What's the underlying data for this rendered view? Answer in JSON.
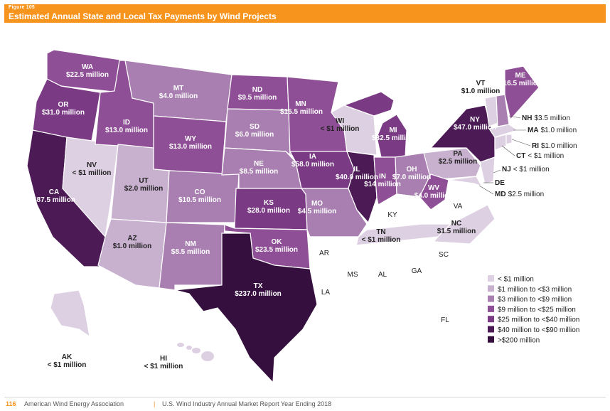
{
  "header": {
    "figure": "Figure 105",
    "title": "Estimated Annual State and Local Tax Payments by Wind Projects"
  },
  "footer": {
    "page": "116",
    "org": "American Wind Energy Association",
    "separator": "|",
    "report": "U.S. Wind Industry Annual Market Report Year Ending 2018"
  },
  "legend": [
    {
      "label": "< $1 million",
      "color": "#ddd0e2"
    },
    {
      "label": "$1 million to <$3 million",
      "color": "#c8b0cf"
    },
    {
      "label": "$3 million to <$9 million",
      "color": "#a87fb0"
    },
    {
      "label": "$9 million to <$25 million",
      "color": "#8f4f96"
    },
    {
      "label": "$25 million to <$40 million",
      "color": "#7a3a84"
    },
    {
      "label": "$40 million to <$90 million",
      "color": "#4c1a55"
    },
    {
      "label": ">$200 million",
      "color": "#35103f"
    }
  ],
  "states": {
    "WA": {
      "abbr": "WA",
      "value": "$22.5 million"
    },
    "OR": {
      "abbr": "OR",
      "value": "$31.0 million"
    },
    "CA": {
      "abbr": "CA",
      "value": "$87.5 million"
    },
    "NV": {
      "abbr": "NV",
      "value": "< $1 million"
    },
    "ID": {
      "abbr": "ID",
      "value": "$13.0 million"
    },
    "MT": {
      "abbr": "MT",
      "value": "$4.0 million"
    },
    "WY": {
      "abbr": "WY",
      "value": "$13.0 million"
    },
    "UT": {
      "abbr": "UT",
      "value": "$2.0 million"
    },
    "AZ": {
      "abbr": "AZ",
      "value": "$1.0 million"
    },
    "CO": {
      "abbr": "CO",
      "value": "$10.5 million"
    },
    "NM": {
      "abbr": "NM",
      "value": "$8.5 million"
    },
    "ND": {
      "abbr": "ND",
      "value": "$9.5 million"
    },
    "SD": {
      "abbr": "SD",
      "value": "$6.0 million"
    },
    "NE": {
      "abbr": "NE",
      "value": "$8.5 million"
    },
    "KS": {
      "abbr": "KS",
      "value": "$28.0 million"
    },
    "OK": {
      "abbr": "OK",
      "value": "$23.5 million"
    },
    "TX": {
      "abbr": "TX",
      "value": "$237.0 million"
    },
    "MN": {
      "abbr": "MN",
      "value": "$15.5 million"
    },
    "IA": {
      "abbr": "IA",
      "value": "$58.0 million"
    },
    "MO": {
      "abbr": "MO",
      "value": "$4.5 million"
    },
    "WI": {
      "abbr": "WI",
      "value": "< $1 million"
    },
    "IL": {
      "abbr": "IL",
      "value": "$40.0 million"
    },
    "MI": {
      "abbr": "MI",
      "value": "$32.5 million"
    },
    "IN": {
      "abbr": "IN",
      "value": "$14 million"
    },
    "OH": {
      "abbr": "OH",
      "value": "$7.0 million"
    },
    "WV": {
      "abbr": "WV",
      "value": "$4.0 million"
    },
    "PA": {
      "abbr": "PA",
      "value": "$2.5 million"
    },
    "NY": {
      "abbr": "NY",
      "value": "$47.0 million"
    },
    "VT": {
      "abbr": "VT",
      "value": "$1.0 million"
    },
    "ME": {
      "abbr": "ME",
      "value": "$16.5 million"
    },
    "NH": {
      "abbr": "NH",
      "value": "$3.5 million"
    },
    "MA": {
      "abbr": "MA",
      "value": "$1.0 million"
    },
    "RI": {
      "abbr": "RI",
      "value": "$1.0 million"
    },
    "CT": {
      "abbr": "CT",
      "value": "< $1 million"
    },
    "NJ": {
      "abbr": "NJ",
      "value": "< $1 million"
    },
    "DE": {
      "abbr": "DE"
    },
    "MD": {
      "abbr": "MD",
      "value": "$2.5 million"
    },
    "NC": {
      "abbr": "NC",
      "value": "$1.5 million"
    },
    "TN": {
      "abbr": "TN",
      "value": "< $1 million"
    },
    "AK": {
      "abbr": "AK",
      "value": "< $1 million"
    },
    "HI": {
      "abbr": "HI",
      "value": "< $1 million"
    },
    "KY": {
      "abbr": "KY"
    },
    "VA": {
      "abbr": "VA"
    },
    "AR": {
      "abbr": "AR"
    },
    "MS": {
      "abbr": "MS"
    },
    "AL": {
      "abbr": "AL"
    },
    "GA": {
      "abbr": "GA"
    },
    "SC": {
      "abbr": "SC"
    },
    "LA": {
      "abbr": "LA"
    },
    "FL": {
      "abbr": "FL"
    }
  }
}
